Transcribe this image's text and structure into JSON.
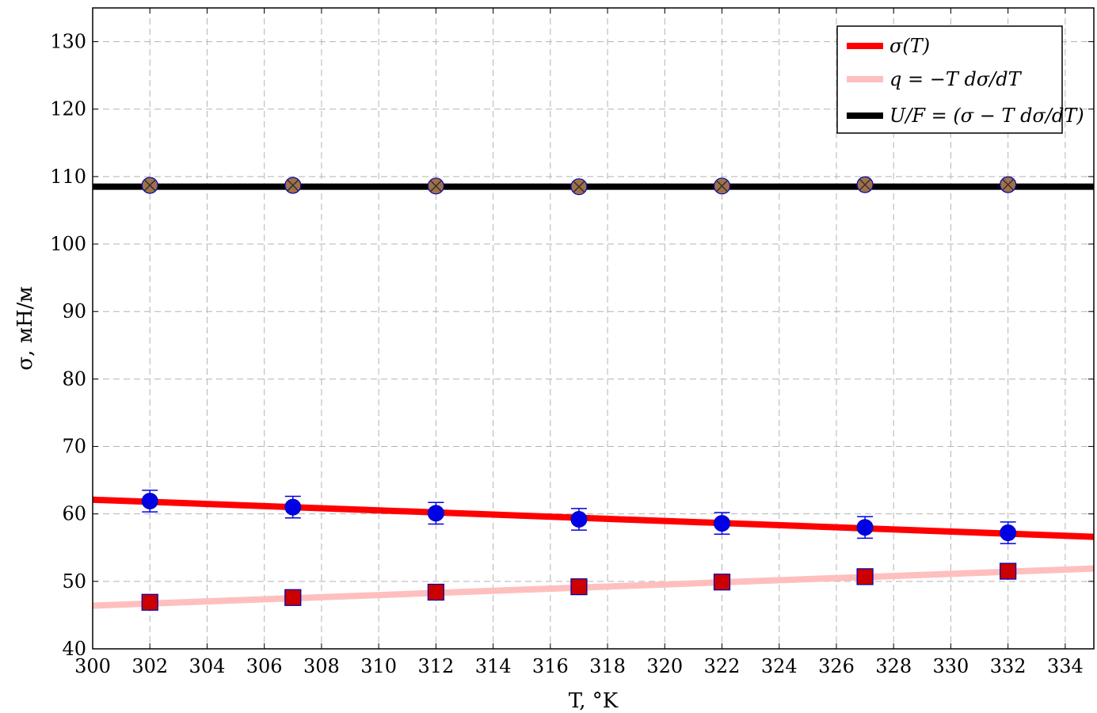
{
  "chart_data": {
    "type": "line",
    "xlabel": "T, °K",
    "ylabel": "σ, мН/м",
    "xlim": [
      300,
      335
    ],
    "ylim": [
      40,
      135
    ],
    "x_ticks": [
      300,
      302,
      304,
      306,
      308,
      310,
      312,
      314,
      316,
      318,
      320,
      322,
      324,
      326,
      328,
      330,
      332,
      334
    ],
    "y_ticks": [
      40,
      50,
      60,
      70,
      80,
      90,
      100,
      110,
      120,
      130
    ],
    "grid": true,
    "legend_position": "top-right",
    "series": [
      {
        "name": "σ(T)",
        "kind": "fit-line",
        "color": "#ff0000",
        "x": [
          300,
          335
        ],
        "y": [
          62.1,
          56.6
        ]
      },
      {
        "name": "q = −T dσ/dT",
        "kind": "fit-line",
        "color": "#ffbfbf",
        "x": [
          300,
          335
        ],
        "y": [
          46.4,
          51.9
        ]
      },
      {
        "name": "U/F = (σ − T dσ/dT)",
        "kind": "fit-line",
        "color": "#000000",
        "x": [
          300,
          335
        ],
        "y": [
          108.5,
          108.5
        ]
      }
    ],
    "points": [
      {
        "marker": "circle",
        "color": "#0000e6",
        "x": [
          302,
          307,
          312,
          317,
          322,
          327,
          332
        ],
        "y": [
          61.9,
          61.0,
          60.1,
          59.2,
          58.6,
          58.0,
          57.2
        ],
        "error": [
          1.6,
          1.6,
          1.6,
          1.6,
          1.6,
          1.6,
          1.6
        ]
      },
      {
        "marker": "square",
        "color": "#cc0000",
        "x": [
          302,
          307,
          312,
          317,
          322,
          327,
          332
        ],
        "y": [
          46.9,
          47.6,
          48.4,
          49.2,
          49.9,
          50.7,
          51.5
        ]
      },
      {
        "marker": "crossed-circle",
        "color": "#a0704a",
        "x": [
          302,
          307,
          312,
          317,
          322,
          327,
          332
        ],
        "y": [
          108.7,
          108.7,
          108.6,
          108.5,
          108.6,
          108.8,
          108.8
        ]
      }
    ],
    "legend": [
      {
        "label": "σ(T)",
        "color": "#ff0000"
      },
      {
        "label": "q = −T dσ/dT",
        "color": "#ffbfbf"
      },
      {
        "label": "U/F = (σ − T dσ/dT)",
        "color": "#000000"
      }
    ]
  }
}
